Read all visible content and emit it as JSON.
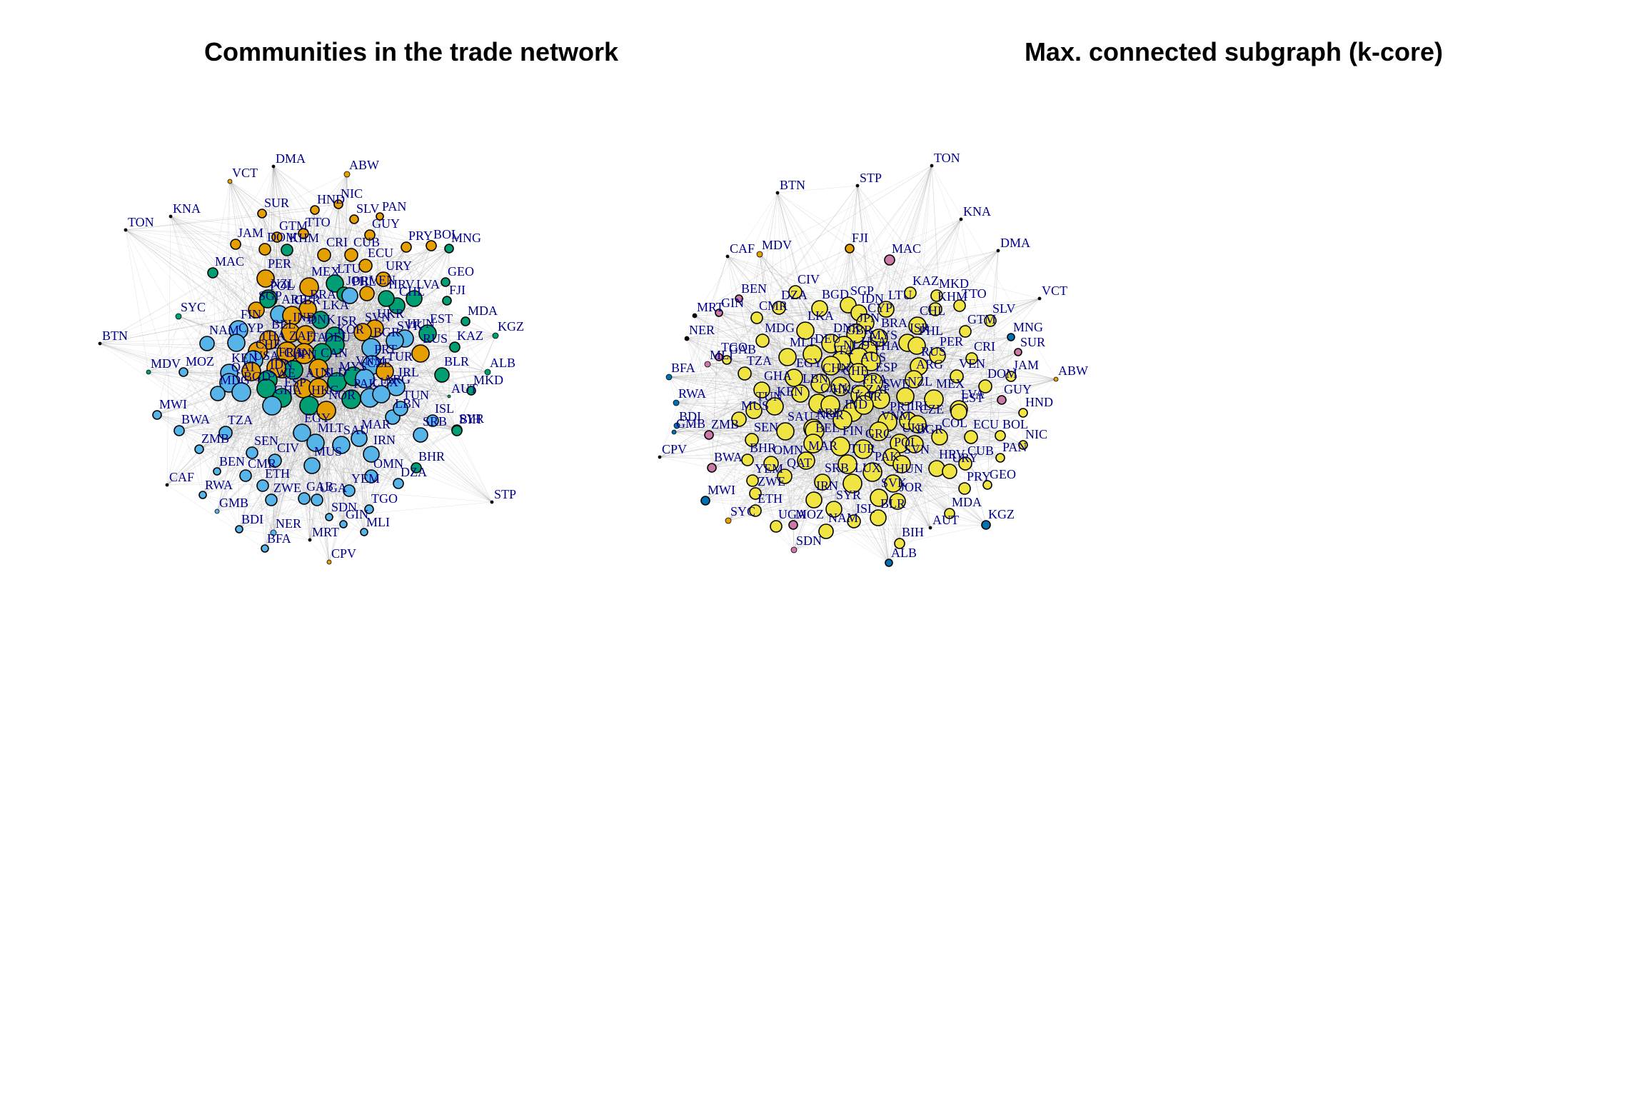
{
  "panels": [
    {
      "title": "Communities in the trade network",
      "nodes": [
        [
          "DMA",
          "k"
        ],
        [
          "ABW",
          "o"
        ],
        [
          "VCT",
          "o"
        ],
        [
          "TON",
          "k"
        ],
        [
          "KNA",
          "k"
        ],
        [
          "NIC",
          "o"
        ],
        [
          "HND",
          "o"
        ],
        [
          "SUR",
          "o"
        ],
        [
          "SLV",
          "o"
        ],
        [
          "PAN",
          "o"
        ],
        [
          "GUY",
          "o"
        ],
        [
          "GTM",
          "o"
        ],
        [
          "TTO",
          "o"
        ],
        [
          "JAM",
          "o"
        ],
        [
          "DOM",
          "o"
        ],
        [
          "KHM",
          "g"
        ],
        [
          "CRI",
          "o"
        ],
        [
          "CUB",
          "o"
        ],
        [
          "PRY",
          "o"
        ],
        [
          "BOL",
          "o"
        ],
        [
          "MNG",
          "g"
        ],
        [
          "ECU",
          "o"
        ],
        [
          "MAC",
          "g"
        ],
        [
          "GEO",
          "g"
        ],
        [
          "PER",
          "o"
        ],
        [
          "LTU",
          "g"
        ],
        [
          "URY",
          "o"
        ],
        [
          "MEX",
          "o"
        ],
        [
          "FJI",
          "g"
        ],
        [
          "NZL",
          "g"
        ],
        [
          "JOR",
          "g"
        ],
        [
          "VEN",
          "o"
        ],
        [
          "LVA",
          "g"
        ],
        [
          "CHL",
          "g"
        ],
        [
          "HRV",
          "g"
        ],
        [
          "PHL",
          "b"
        ],
        [
          "SGP",
          "o"
        ],
        [
          "POL",
          "g"
        ],
        [
          "BRA",
          "o"
        ],
        [
          "ARE",
          "b"
        ],
        [
          "GBR",
          "o"
        ],
        [
          "LKA",
          "g"
        ],
        [
          "SYC",
          "g"
        ],
        [
          "MDA",
          "g"
        ],
        [
          "KGZ",
          "g"
        ],
        [
          "IND",
          "o"
        ],
        [
          "DNK",
          "o"
        ],
        [
          "ISR",
          "g"
        ],
        [
          "UKR",
          "o"
        ],
        [
          "EST",
          "g"
        ],
        [
          "BTN",
          "k"
        ],
        [
          "FIN",
          "b"
        ],
        [
          "BEL",
          "o"
        ],
        [
          "CYP",
          "b"
        ],
        [
          "KOR",
          "g"
        ],
        [
          "SVN",
          "o"
        ],
        [
          "HUN",
          "b"
        ],
        [
          "SVK",
          "b"
        ],
        [
          "KAZ",
          "g"
        ],
        [
          "NAM",
          "b"
        ],
        [
          "THA",
          "o"
        ],
        [
          "ZAF",
          "o"
        ],
        [
          "ITA",
          "o"
        ],
        [
          "BGR",
          "b"
        ],
        [
          "DEU",
          "g"
        ],
        [
          "CHN",
          "o"
        ],
        [
          "JPN",
          "g"
        ],
        [
          "CAN",
          "o"
        ],
        [
          "RUS",
          "o"
        ],
        [
          "PRT",
          "b"
        ],
        [
          "CHE",
          "b"
        ],
        [
          "FRA",
          "o"
        ],
        [
          "MDV",
          "g"
        ],
        [
          "MOZ",
          "b"
        ],
        [
          "KEN",
          "b"
        ],
        [
          "USA",
          "o"
        ],
        [
          "IDN",
          "g"
        ],
        [
          "BLR",
          "g"
        ],
        [
          "ALB",
          "g"
        ],
        [
          "QAT",
          "b"
        ],
        [
          "BGD",
          "b"
        ],
        [
          "SWE",
          "g"
        ],
        [
          "AUS",
          "o"
        ],
        [
          "NLD",
          "o"
        ],
        [
          "MYS",
          "g"
        ],
        [
          "VNM",
          "g"
        ],
        [
          "CZE",
          "b"
        ],
        [
          "TUR",
          "o"
        ],
        [
          "IRL",
          "b"
        ],
        [
          "MKD",
          "g"
        ],
        [
          "AUT",
          "g"
        ],
        [
          "PAK",
          "g"
        ],
        [
          "LUX",
          "b"
        ],
        [
          "ARG",
          "b"
        ],
        [
          "MDG",
          "b"
        ],
        [
          "ESP",
          "g"
        ],
        [
          "HKG",
          "g"
        ],
        [
          "NOR",
          "o"
        ],
        [
          "GHA",
          "b"
        ],
        [
          "TZA",
          "b"
        ],
        [
          "MWI",
          "b"
        ],
        [
          "LBN",
          "b"
        ],
        [
          "TUN",
          "b"
        ],
        [
          "ISL",
          "b"
        ],
        [
          "EGY",
          "b"
        ],
        [
          "MAR",
          "b"
        ],
        [
          "BWA",
          "b"
        ],
        [
          "SAU",
          "b"
        ],
        [
          "MLT",
          "b"
        ],
        [
          "SYR",
          "b"
        ],
        [
          "BIH",
          "g"
        ],
        [
          "SRB",
          "b"
        ],
        [
          "ZMB",
          "b"
        ],
        [
          "SEN",
          "b"
        ],
        [
          "IRN",
          "b"
        ],
        [
          "CIV",
          "b"
        ],
        [
          "MUS",
          "b"
        ],
        [
          "BHR",
          "g"
        ],
        [
          "CAF",
          "k"
        ],
        [
          "BEN",
          "b"
        ],
        [
          "CMR",
          "b"
        ],
        [
          "OMN",
          "b"
        ],
        [
          "DZA",
          "b"
        ],
        [
          "ETH",
          "b"
        ],
        [
          "STP",
          "k"
        ],
        [
          "RWA",
          "b"
        ],
        [
          "GAB",
          "b"
        ],
        [
          "YEM",
          "b"
        ],
        [
          "UGA",
          "b"
        ],
        [
          "ZWE",
          "b"
        ],
        [
          "TGO",
          "b"
        ],
        [
          "GMB",
          "b"
        ],
        [
          "SDN",
          "b"
        ],
        [
          "GIN",
          "b"
        ],
        [
          "BDI",
          "b"
        ],
        [
          "MLI",
          "b"
        ],
        [
          "NER",
          "b"
        ],
        [
          "MRT",
          "k"
        ],
        [
          "BFA",
          "b"
        ],
        [
          "CPV",
          "o"
        ]
      ]
    },
    {
      "title": "Max. connected subgraph (k-core)",
      "nodes": [
        [
          "TON",
          "k"
        ],
        [
          "BTN",
          "k"
        ],
        [
          "STP",
          "k"
        ],
        [
          "KNA",
          "k"
        ],
        [
          "CAF",
          "k"
        ],
        [
          "MDV",
          "o"
        ],
        [
          "FJI",
          "o"
        ],
        [
          "MAC",
          "p"
        ],
        [
          "DMA",
          "k"
        ],
        [
          "CIV",
          "y"
        ],
        [
          "VCT",
          "k"
        ],
        [
          "BEN",
          "p"
        ],
        [
          "KAZ",
          "y"
        ],
        [
          "MKD",
          "y"
        ],
        [
          "MRT",
          "k"
        ],
        [
          "GIN",
          "p"
        ],
        [
          "BGD",
          "y"
        ],
        [
          "SGP",
          "y"
        ],
        [
          "TTO",
          "y"
        ],
        [
          "DZA",
          "y"
        ],
        [
          "CMR",
          "y"
        ],
        [
          "LTU",
          "y"
        ],
        [
          "IDN",
          "y"
        ],
        [
          "KHM",
          "y"
        ],
        [
          "LKA",
          "y"
        ],
        [
          "CYP",
          "y"
        ],
        [
          "CHL",
          "y"
        ],
        [
          "SLV",
          "y"
        ],
        [
          "NER",
          "k"
        ],
        [
          "BRA",
          "y"
        ],
        [
          "JPN",
          "y"
        ],
        [
          "GTM",
          "y"
        ],
        [
          "MNG",
          "bd"
        ],
        [
          "DNK",
          "y"
        ],
        [
          "ISR",
          "y"
        ],
        [
          "PHL",
          "y"
        ],
        [
          "MDG",
          "y"
        ],
        [
          "GBR",
          "y"
        ],
        [
          "MYS",
          "y"
        ],
        [
          "SUR",
          "p"
        ],
        [
          "TGO",
          "p"
        ],
        [
          "GAB",
          "y"
        ],
        [
          "PER",
          "y"
        ],
        [
          "MLT",
          "y"
        ],
        [
          "USA",
          "y"
        ],
        [
          "NLD",
          "y"
        ],
        [
          "THA",
          "y"
        ],
        [
          "CRI",
          "y"
        ],
        [
          "DEU",
          "y"
        ],
        [
          "RUS",
          "y"
        ],
        [
          "ITA",
          "y"
        ],
        [
          "AUS",
          "y"
        ],
        [
          "MLI",
          "p"
        ],
        [
          "EGY",
          "y"
        ],
        [
          "TZA",
          "y"
        ],
        [
          "ESP",
          "y"
        ],
        [
          "JAM",
          "y"
        ],
        [
          "VEN",
          "y"
        ],
        [
          "ABW",
          "o"
        ],
        [
          "BFA",
          "bd"
        ],
        [
          "ARG",
          "y"
        ],
        [
          "CHN",
          "y"
        ],
        [
          "CHE",
          "y"
        ],
        [
          "FRA",
          "y"
        ],
        [
          "GHA",
          "y"
        ],
        [
          "LBN",
          "y"
        ],
        [
          "DOM",
          "y"
        ],
        [
          "NZL",
          "y"
        ],
        [
          "MEX",
          "y"
        ],
        [
          "CAN",
          "y"
        ],
        [
          "HKG",
          "y"
        ],
        [
          "SWE",
          "y"
        ],
        [
          "GUY",
          "p"
        ],
        [
          "RWA",
          "bd"
        ],
        [
          "KEN",
          "y"
        ],
        [
          "KOR",
          "y"
        ],
        [
          "ZAF",
          "y"
        ],
        [
          "LVA",
          "y"
        ],
        [
          "TUN",
          "y"
        ],
        [
          "HND",
          "y"
        ],
        [
          "MUS",
          "y"
        ],
        [
          "IND",
          "y"
        ],
        [
          "PRT",
          "y"
        ],
        [
          "IRL",
          "y"
        ],
        [
          "CZE",
          "y"
        ],
        [
          "EST",
          "y"
        ],
        [
          "BDI",
          "bd"
        ],
        [
          "SAU",
          "y"
        ],
        [
          "ARE",
          "y"
        ],
        [
          "VNM",
          "y"
        ],
        [
          "NOR",
          "y"
        ],
        [
          "ZMB",
          "p"
        ],
        [
          "COL",
          "y"
        ],
        [
          "ECU",
          "y"
        ],
        [
          "BOL",
          "y"
        ],
        [
          "GMB",
          "bd"
        ],
        [
          "SEN",
          "y"
        ],
        [
          "BEL",
          "y"
        ],
        [
          "FIN",
          "y"
        ],
        [
          "GRC",
          "y"
        ],
        [
          "UKR",
          "y"
        ],
        [
          "BGR",
          "y"
        ],
        [
          "NIC",
          "y"
        ],
        [
          "CPV",
          "k"
        ],
        [
          "BHR",
          "y"
        ],
        [
          "POL",
          "y"
        ],
        [
          "MAR",
          "y"
        ],
        [
          "OMN",
          "y"
        ],
        [
          "TUR",
          "y"
        ],
        [
          "SVN",
          "y"
        ],
        [
          "PAN",
          "y"
        ],
        [
          "BWA",
          "p"
        ],
        [
          "PAK",
          "y"
        ],
        [
          "HRV",
          "y"
        ],
        [
          "CUB",
          "y"
        ],
        [
          "GEO",
          "y"
        ],
        [
          "QAT",
          "y"
        ],
        [
          "URY",
          "y"
        ],
        [
          "YEM",
          "y"
        ],
        [
          "SRB",
          "y"
        ],
        [
          "HUN",
          "y"
        ],
        [
          "LUX",
          "y"
        ],
        [
          "PRY",
          "y"
        ],
        [
          "MWI",
          "bd"
        ],
        [
          "ZWE",
          "y"
        ],
        [
          "IRN",
          "y"
        ],
        [
          "SVK",
          "y"
        ],
        [
          "SYR",
          "y"
        ],
        [
          "JOR",
          "y"
        ],
        [
          "ETH",
          "y"
        ],
        [
          "SYC",
          "o"
        ],
        [
          "MDA",
          "y"
        ],
        [
          "KGZ",
          "bd"
        ],
        [
          "UGA",
          "y"
        ],
        [
          "MOZ",
          "p"
        ],
        [
          "ISL",
          "y"
        ],
        [
          "NAM",
          "y"
        ],
        [
          "BLR",
          "y"
        ],
        [
          "AUT",
          "k"
        ],
        [
          "BIH",
          "y"
        ],
        [
          "SDN",
          "p"
        ],
        [
          "ALB",
          "bd"
        ]
      ]
    }
  ],
  "colors": {
    "k": "#000000",
    "o": "#E69F00",
    "g": "#009E73",
    "b": "#56B4E9",
    "y": "#F0E442",
    "p": "#CC79A7",
    "bd": "#0072B2",
    "label": "#00008B",
    "edge": "#9a9a9a"
  }
}
